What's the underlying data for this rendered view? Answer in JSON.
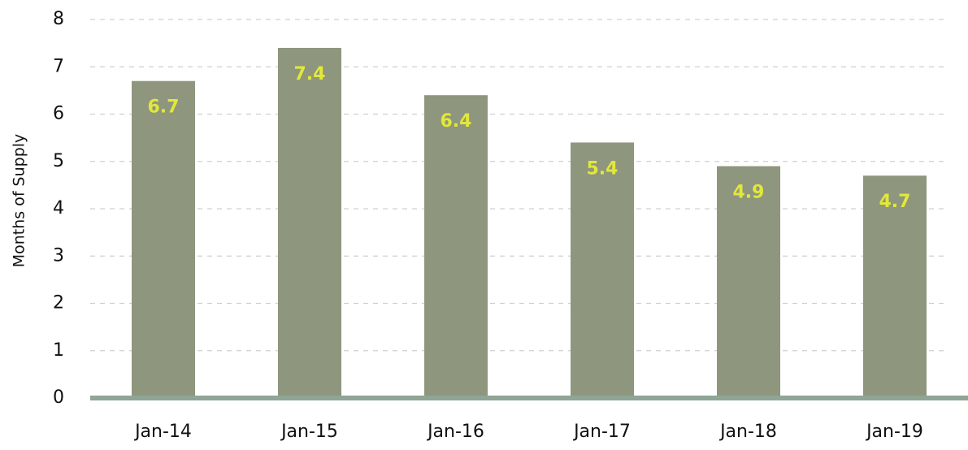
{
  "chart_data": {
    "type": "bar",
    "y_label": "Months of Supply",
    "categories": [
      "Jan-14",
      "Jan-15",
      "Jan-16",
      "Jan-17",
      "Jan-18",
      "Jan-19"
    ],
    "values": [
      6.7,
      7.4,
      6.4,
      5.4,
      4.9,
      4.7
    ],
    "color": "#8e967e",
    "label_color": "#e2e83a",
    "ylim": [
      0,
      8
    ],
    "yticks": [
      0,
      1,
      2,
      3,
      4,
      5,
      6,
      7,
      8
    ],
    "grid": true
  }
}
